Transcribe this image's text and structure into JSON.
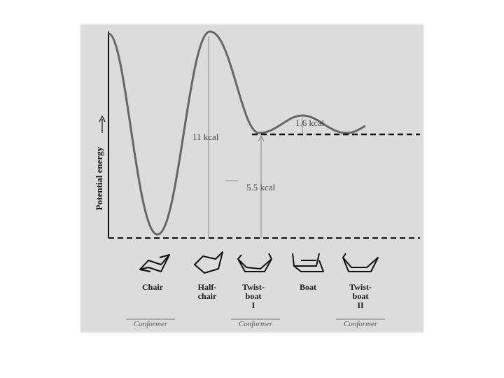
{
  "axis_label": "Potential energy",
  "annotations": {
    "chair_to_halfchair": "11 kcal",
    "chair_to_twistboat": "5.5 kcal",
    "twistboat_to_boat": "1.6 kcal"
  },
  "conformers": [
    {
      "lines": [
        "Chair"
      ]
    },
    {
      "lines": [
        "Half-",
        "chair"
      ]
    },
    {
      "lines": [
        "Twist-",
        "boat",
        "I"
      ]
    },
    {
      "lines": [
        "Boat"
      ]
    },
    {
      "lines": [
        "Twist-",
        "boat",
        "II"
      ]
    }
  ],
  "footer": [
    "Conformer",
    "Conformer",
    "Conformer"
  ]
}
